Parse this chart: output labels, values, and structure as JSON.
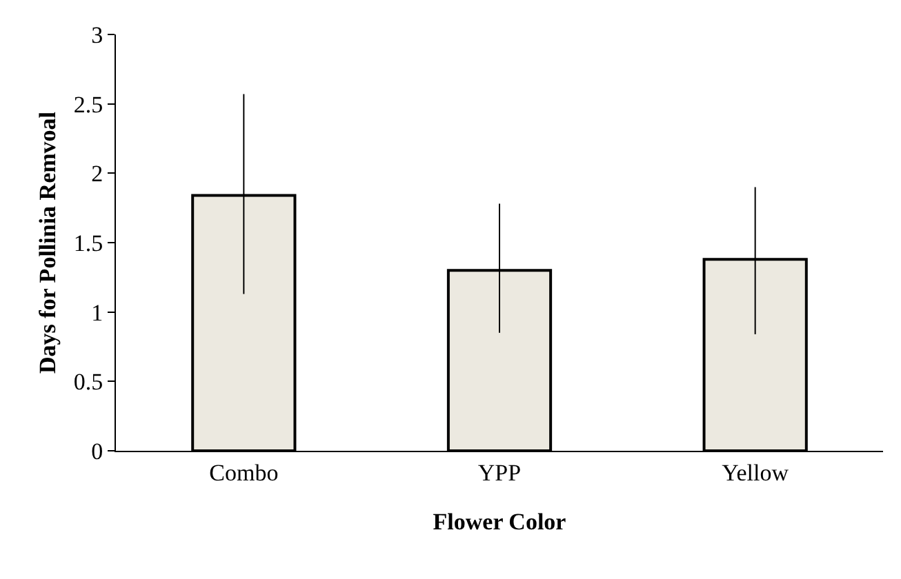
{
  "chart_data": {
    "type": "bar",
    "xlabel": "Flower Color",
    "ylabel": "Days for Pollinia Remvoal",
    "categories": [
      "Combo",
      "YPP",
      "Yellow"
    ],
    "values": [
      1.84,
      1.3,
      1.38
    ],
    "errors": [
      [
        1.13,
        2.57
      ],
      [
        0.85,
        1.78
      ],
      [
        0.84,
        1.9
      ]
    ],
    "color": "#ece9e0",
    "ylim": [
      0,
      3
    ],
    "yticks": [
      0,
      0.5,
      1,
      1.5,
      2,
      2.5,
      3
    ],
    "grid": false
  }
}
